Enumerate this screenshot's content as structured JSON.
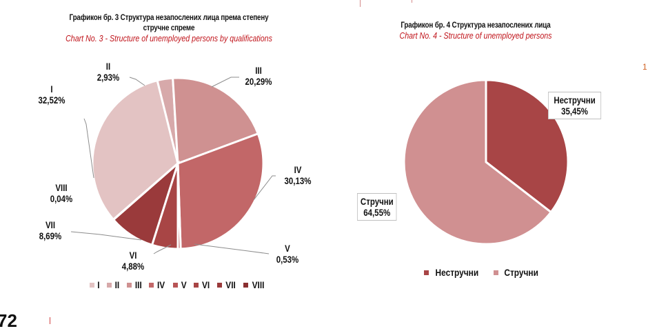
{
  "chart_data": [
    {
      "type": "pie",
      "title": "Графикон бр. 3 Структура незапослених лица према степену стручне спреме",
      "subtitle": "Chart No. 3 - Structure of unemployed persons by qualifications",
      "categories": [
        "I",
        "II",
        "III",
        "IV",
        "V",
        "VI",
        "VII",
        "VIII"
      ],
      "values": [
        32.52,
        2.93,
        20.29,
        30.13,
        0.53,
        4.88,
        8.69,
        0.04
      ],
      "labels": [
        "32,52%",
        "2,93%",
        "20,29%",
        "30,13%",
        "0,53%",
        "4,88%",
        "8,69%",
        "0,04%"
      ],
      "colors": [
        "#e3c3c3",
        "#d7a9aa",
        "#cf9191",
        "#c26768",
        "#b85556",
        "#a84545",
        "#9a3a3b",
        "#8a2f30"
      ],
      "legend_position": "bottom"
    },
    {
      "type": "pie",
      "title": "Графикон бр. 4 Структура незапослених лица",
      "subtitle": "Chart No. 4 - Structure of unemployed persons",
      "categories": [
        "Нестручни",
        "Стручни"
      ],
      "values": [
        35.45,
        64.55
      ],
      "labels": [
        "35,45%",
        "64,55%"
      ],
      "colors": [
        "#a84546",
        "#d09091"
      ],
      "legend_position": "bottom"
    }
  ],
  "chart3": {
    "title_line1": "Графикон бр. 3 Структура незапослених лица према степену",
    "title_line2": "стручне спреме",
    "subtitle": "Chart No. 3 - Structure of unemployed persons by qualifications",
    "labels": {
      "I": {
        "name": "I",
        "pct": "32,52%"
      },
      "II": {
        "name": "II",
        "pct": "2,93%"
      },
      "III": {
        "name": "III",
        "pct": "20,29%"
      },
      "IV": {
        "name": "IV",
        "pct": "30,13%"
      },
      "V": {
        "name": "V",
        "pct": "0,53%"
      },
      "VI": {
        "name": "VI",
        "pct": "4,88%"
      },
      "VII": {
        "name": "VII",
        "pct": "8,69%"
      },
      "VIII": {
        "name": "VIII",
        "pct": "0,04%"
      }
    },
    "legend": [
      "I",
      "II",
      "III",
      "IV",
      "V",
      "VI",
      "VII",
      "VIII"
    ]
  },
  "chart4": {
    "title": "Графикон бр. 4 Структура незапослених лица",
    "subtitle": "Chart No. 4 - Structure of unemployed persons",
    "label_unskilled": {
      "name": "Нестручни",
      "pct": "35,45%"
    },
    "label_skilled": {
      "name": "Стручни",
      "pct": "64,55%"
    },
    "legend": [
      "Нестручни",
      "Стручни"
    ]
  },
  "page": {
    "page_number_fragment": "72",
    "right_edge_fragment": "1"
  }
}
